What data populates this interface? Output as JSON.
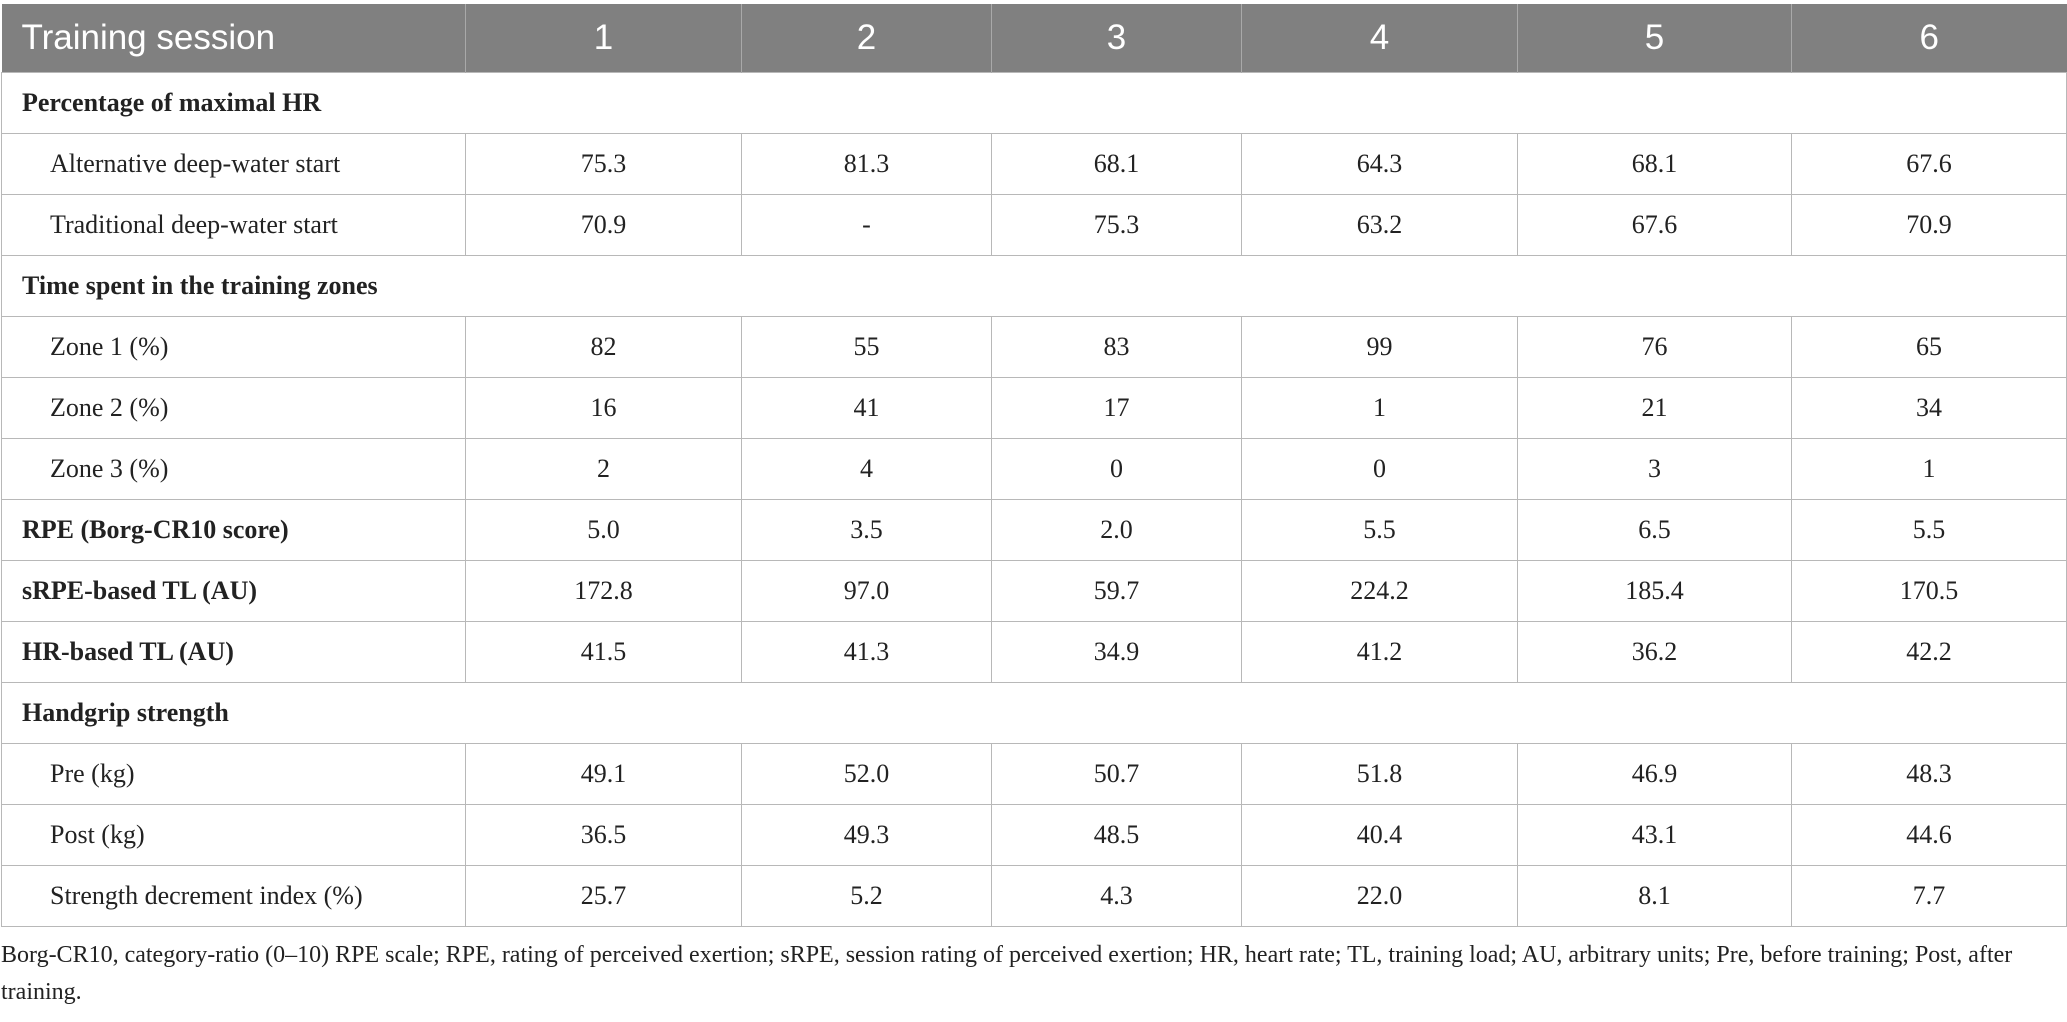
{
  "table": {
    "header": [
      "Training session",
      "1",
      "2",
      "3",
      "4",
      "5",
      "6"
    ],
    "rows": [
      {
        "type": "section",
        "label": "Percentage of maximal HR"
      },
      {
        "type": "sub",
        "label": "Alternative deep-water start",
        "values": [
          "75.3",
          "81.3",
          "68.1",
          "64.3",
          "68.1",
          "67.6"
        ]
      },
      {
        "type": "sub",
        "label": "Traditional deep-water start",
        "values": [
          "70.9",
          "-",
          "75.3",
          "63.2",
          "67.6",
          "70.9"
        ]
      },
      {
        "type": "section",
        "label": "Time spent in the training zones"
      },
      {
        "type": "sub",
        "label": "Zone 1 (%)",
        "values": [
          "82",
          "55",
          "83",
          "99",
          "76",
          "65"
        ]
      },
      {
        "type": "sub",
        "label": "Zone 2 (%)",
        "values": [
          "16",
          "41",
          "17",
          "1",
          "21",
          "34"
        ]
      },
      {
        "type": "sub",
        "label": "Zone 3 (%)",
        "values": [
          "2",
          "4",
          "0",
          "0",
          "3",
          "1"
        ]
      },
      {
        "type": "main",
        "label": "RPE (Borg-CR10 score)",
        "values": [
          "5.0",
          "3.5",
          "2.0",
          "5.5",
          "6.5",
          "5.5"
        ]
      },
      {
        "type": "main",
        "label": "sRPE-based TL (AU)",
        "values": [
          "172.8",
          "97.0",
          "59.7",
          "224.2",
          "185.4",
          "170.5"
        ]
      },
      {
        "type": "main",
        "label": "HR-based TL (AU)",
        "values": [
          "41.5",
          "41.3",
          "34.9",
          "41.2",
          "36.2",
          "42.2"
        ]
      },
      {
        "type": "section",
        "label": "Handgrip strength"
      },
      {
        "type": "sub",
        "label": "Pre (kg)",
        "values": [
          "49.1",
          "52.0",
          "50.7",
          "51.8",
          "46.9",
          "48.3"
        ]
      },
      {
        "type": "sub",
        "label": "Post (kg)",
        "values": [
          "36.5",
          "49.3",
          "48.5",
          "40.4",
          "43.1",
          "44.6"
        ]
      },
      {
        "type": "sub",
        "label": "Strength decrement index (%)",
        "values": [
          "25.7",
          "5.2",
          "4.3",
          "22.0",
          "8.1",
          "7.7"
        ]
      }
    ]
  },
  "footnote": "Borg-CR10, category-ratio (0–10) RPE scale; RPE, rating of perceived exertion; sRPE, session rating of perceived exertion; HR, heart rate; TL, training load; AU, arbitrary units; Pre, before training; Post, after training.",
  "colors": {
    "header_bg": "#808080",
    "header_text": "#ffffff",
    "grid": "#b8b8b8"
  }
}
